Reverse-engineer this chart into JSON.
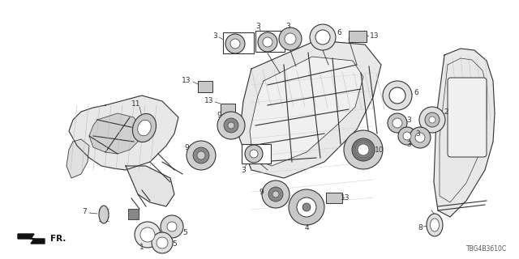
{
  "diagram_code": "TBG4B3610C",
  "bg_color": "#ffffff",
  "figsize": [
    6.4,
    3.2
  ],
  "dpi": 100,
  "line_color": "#333333",
  "light_gray": "#bbbbbb",
  "mid_gray": "#888888",
  "dark_gray": "#555555"
}
